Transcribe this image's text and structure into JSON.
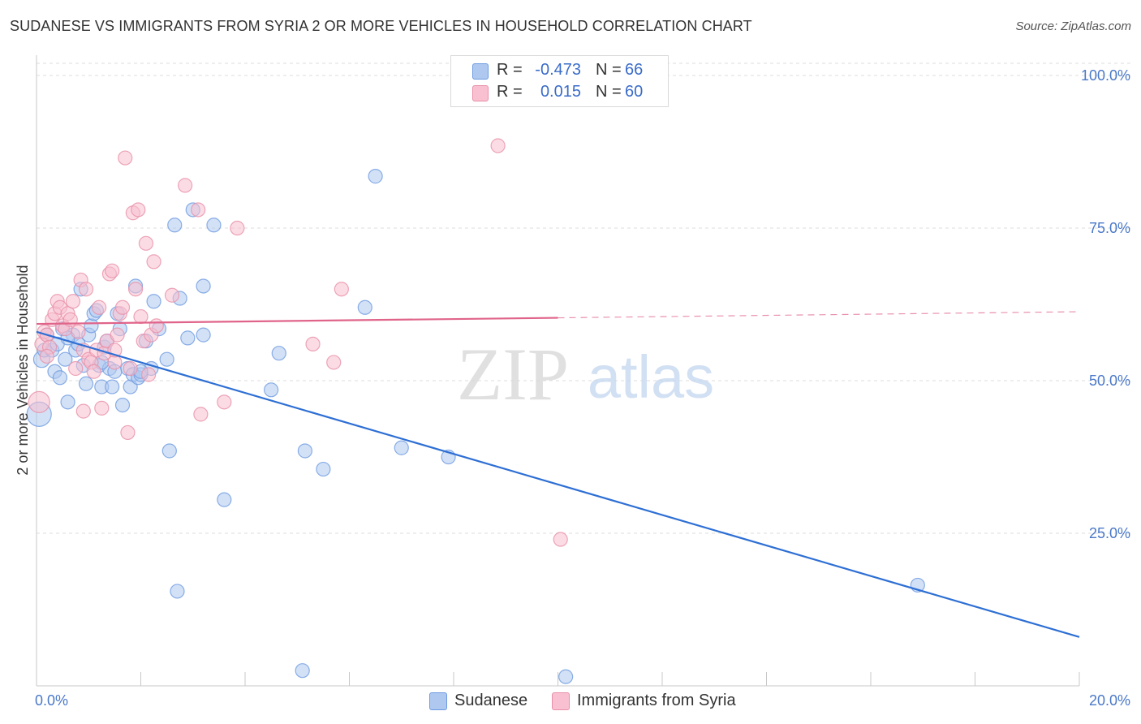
{
  "title": "SUDANESE VS IMMIGRANTS FROM SYRIA 2 OR MORE VEHICLES IN HOUSEHOLD CORRELATION CHART",
  "source": "Source: ZipAtlas.com",
  "watermark": {
    "zip": "ZIP",
    "atlas": "atlas"
  },
  "legend": {
    "rows": [
      {
        "r_label": "R =",
        "r_value": "-0.473",
        "n_label": "N =",
        "n_value": "66",
        "color": "#aec8f0",
        "border": "#6e9be0"
      },
      {
        "r_label": "R =",
        "r_value": "0.015",
        "n_label": "N =",
        "n_value": "60",
        "color": "#f8c0d0",
        "border": "#e890a8"
      }
    ]
  },
  "bottom_legend": {
    "items": [
      {
        "label": "Sudanese",
        "color": "#aec8f0",
        "border": "#6e9be0"
      },
      {
        "label": "Immigrants from Syria",
        "color": "#f8c0d0",
        "border": "#e890a8"
      }
    ]
  },
  "chart_data": {
    "type": "scatter",
    "title": "SUDANESE VS IMMIGRANTS FROM SYRIA 2 OR MORE VEHICLES IN HOUSEHOLD CORRELATION CHART",
    "xlabel": "",
    "ylabel": "2 or more Vehicles in Household",
    "xlim": [
      0,
      20
    ],
    "ylim": [
      0,
      102
    ],
    "x_tick_labels": [
      "0.0%",
      "20.0%"
    ],
    "y_ticks": [
      25,
      50,
      75,
      100
    ],
    "y_tick_labels": [
      "25.0%",
      "50.0%",
      "75.0%",
      "100.0%"
    ],
    "grid": true,
    "legend_position": "top-center",
    "series": [
      {
        "name": "Sudanese",
        "color": "#6e9be0",
        "fill": "#aec8f0",
        "trend_color": "#2e6fd4",
        "trend": {
          "x0": 0,
          "y0": 58.0,
          "x1": 20,
          "y1": 8.0,
          "solid_to": 20
        },
        "points": [
          [
            0.05,
            44.5
          ],
          [
            0.1,
            53.5
          ],
          [
            0.15,
            55
          ],
          [
            0.2,
            57.5
          ],
          [
            0.3,
            55
          ],
          [
            0.35,
            51.5
          ],
          [
            0.4,
            56
          ],
          [
            0.45,
            50.5
          ],
          [
            0.5,
            58.5
          ],
          [
            0.55,
            53.5
          ],
          [
            0.6,
            46.5
          ],
          [
            0.7,
            57.5
          ],
          [
            0.75,
            55
          ],
          [
            0.8,
            56
          ],
          [
            0.85,
            65
          ],
          [
            0.9,
            52.5
          ],
          [
            0.95,
            49.5
          ],
          [
            1.0,
            57.5
          ],
          [
            1.05,
            59
          ],
          [
            1.1,
            61
          ],
          [
            1.15,
            61.5
          ],
          [
            1.2,
            52.5
          ],
          [
            1.25,
            49
          ],
          [
            1.3,
            55.5
          ],
          [
            1.35,
            56.5
          ],
          [
            1.4,
            52
          ],
          [
            1.45,
            49
          ],
          [
            1.5,
            51.5
          ],
          [
            1.55,
            61
          ],
          [
            1.6,
            58.5
          ],
          [
            1.65,
            46
          ],
          [
            1.75,
            52
          ],
          [
            1.8,
            49
          ],
          [
            1.85,
            51
          ],
          [
            1.9,
            65.5
          ],
          [
            1.95,
            50.5
          ],
          [
            2.0,
            51
          ],
          [
            2.1,
            56.5
          ],
          [
            2.2,
            52
          ],
          [
            2.25,
            63
          ],
          [
            2.35,
            58.5
          ],
          [
            2.5,
            53.5
          ],
          [
            2.55,
            38.5
          ],
          [
            2.65,
            75.5
          ],
          [
            2.7,
            15.5
          ],
          [
            2.75,
            63.5
          ],
          [
            2.9,
            57
          ],
          [
            3.0,
            78
          ],
          [
            3.2,
            57.5
          ],
          [
            3.2,
            65.5
          ],
          [
            3.4,
            75.5
          ],
          [
            3.6,
            30.5
          ],
          [
            4.5,
            48.5
          ],
          [
            4.65,
            54.5
          ],
          [
            5.1,
            2.5
          ],
          [
            5.15,
            38.5
          ],
          [
            5.5,
            35.5
          ],
          [
            6.3,
            62
          ],
          [
            6.5,
            83.5
          ],
          [
            7.0,
            39
          ],
          [
            7.9,
            37.5
          ],
          [
            10.15,
            1.5
          ],
          [
            16.9,
            16.5
          ],
          [
            0.6,
            57
          ],
          [
            1.25,
            53
          ],
          [
            2.0,
            51.5
          ]
        ]
      },
      {
        "name": "Immigrants from Syria",
        "color": "#e890a8",
        "fill": "#f8c0d0",
        "trend_color": "#e0648a",
        "trend": {
          "x0": 0,
          "y0": 59.3,
          "x1": 20,
          "y1": 61.3,
          "solid_to": 10.0
        },
        "points": [
          [
            0.05,
            46.5
          ],
          [
            0.1,
            56
          ],
          [
            0.15,
            58
          ],
          [
            0.2,
            57.5
          ],
          [
            0.25,
            55.5
          ],
          [
            0.3,
            60
          ],
          [
            0.35,
            61
          ],
          [
            0.4,
            63
          ],
          [
            0.45,
            62
          ],
          [
            0.5,
            59
          ],
          [
            0.55,
            58.5
          ],
          [
            0.6,
            61
          ],
          [
            0.65,
            60
          ],
          [
            0.7,
            63
          ],
          [
            0.75,
            52
          ],
          [
            0.8,
            58
          ],
          [
            0.85,
            66.5
          ],
          [
            0.9,
            55
          ],
          [
            0.95,
            65
          ],
          [
            1.0,
            53.5
          ],
          [
            1.05,
            53
          ],
          [
            1.1,
            51.5
          ],
          [
            1.15,
            55
          ],
          [
            1.2,
            62
          ],
          [
            1.25,
            45.5
          ],
          [
            1.3,
            54.5
          ],
          [
            1.35,
            56.5
          ],
          [
            1.4,
            67.5
          ],
          [
            1.45,
            68
          ],
          [
            1.5,
            53
          ],
          [
            1.55,
            57.5
          ],
          [
            1.6,
            61
          ],
          [
            1.65,
            62
          ],
          [
            1.7,
            86.5
          ],
          [
            1.75,
            41.5
          ],
          [
            1.8,
            52
          ],
          [
            1.85,
            77.5
          ],
          [
            1.9,
            65
          ],
          [
            1.95,
            78
          ],
          [
            2.0,
            60.5
          ],
          [
            2.05,
            56.5
          ],
          [
            2.1,
            72.5
          ],
          [
            2.15,
            51
          ],
          [
            2.2,
            57.5
          ],
          [
            2.25,
            69.5
          ],
          [
            2.6,
            64
          ],
          [
            2.85,
            82
          ],
          [
            3.1,
            78
          ],
          [
            3.15,
            44.5
          ],
          [
            3.6,
            46.5
          ],
          [
            3.85,
            75
          ],
          [
            5.3,
            56
          ],
          [
            5.7,
            53
          ],
          [
            5.85,
            65
          ],
          [
            8.85,
            88.5
          ],
          [
            10.05,
            24
          ],
          [
            0.9,
            45
          ],
          [
            1.5,
            55
          ],
          [
            2.3,
            59
          ],
          [
            0.2,
            54
          ]
        ]
      }
    ]
  }
}
